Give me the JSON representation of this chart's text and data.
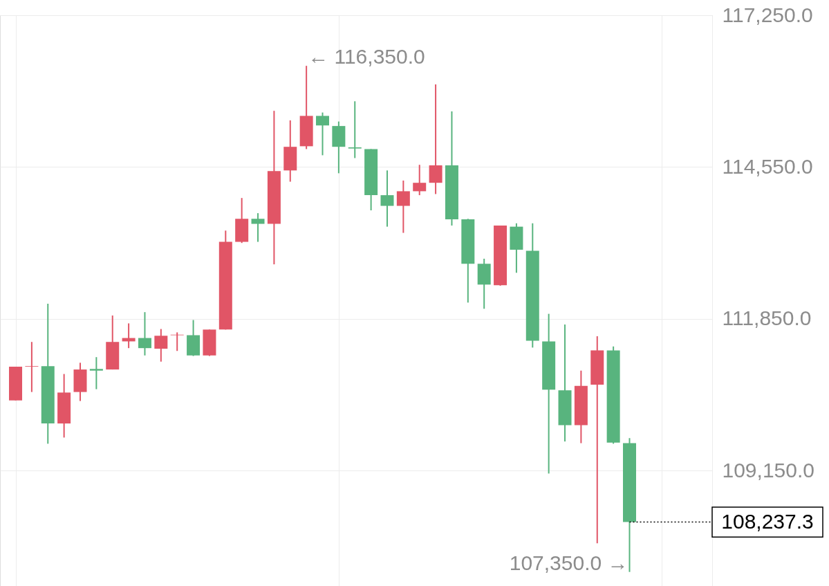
{
  "chart_data": {
    "type": "candlestick",
    "categories": [
      null,
      null,
      null,
      null,
      null,
      null,
      null,
      null,
      null,
      null,
      null,
      null,
      null,
      null,
      null,
      null,
      null,
      null,
      null,
      null,
      null,
      null,
      null,
      null,
      null,
      null,
      null,
      null,
      null,
      null,
      null,
      null,
      null,
      null,
      null,
      null,
      null,
      null,
      null
    ],
    "ohlc": [
      [
        110400,
        111000,
        110400,
        111000
      ],
      [
        111000,
        111440,
        110550,
        111010
      ],
      [
        111010,
        112120,
        109630,
        109990
      ],
      [
        109990,
        110870,
        109740,
        110540
      ],
      [
        110550,
        111070,
        110390,
        110950
      ],
      [
        110960,
        111170,
        110600,
        110930
      ],
      [
        110950,
        111910,
        110950,
        111440
      ],
      [
        111450,
        111770,
        111330,
        111510
      ],
      [
        111510,
        111970,
        111200,
        111330
      ],
      [
        111320,
        111670,
        111090,
        111550
      ],
      [
        111560,
        111610,
        111280,
        111570
      ],
      [
        111560,
        111830,
        111190,
        111200
      ],
      [
        111200,
        111660,
        111190,
        111660
      ],
      [
        111660,
        113420,
        111660,
        113220
      ],
      [
        113220,
        114000,
        113200,
        113630
      ],
      [
        113630,
        113730,
        113220,
        113540
      ],
      [
        113540,
        115550,
        112820,
        114480
      ],
      [
        114490,
        115380,
        114290,
        114910
      ],
      [
        114920,
        116350,
        114870,
        115460
      ],
      [
        115460,
        115520,
        114760,
        115290
      ],
      [
        115280,
        115360,
        114440,
        114910
      ],
      [
        114900,
        115720,
        114710,
        114880
      ],
      [
        114870,
        114870,
        113780,
        114050
      ],
      [
        114050,
        114490,
        113490,
        113860
      ],
      [
        113860,
        114310,
        113380,
        114120
      ],
      [
        114120,
        114590,
        114050,
        114270
      ],
      [
        114270,
        116020,
        114070,
        114580
      ],
      [
        114580,
        115540,
        113510,
        113620
      ],
      [
        113620,
        113630,
        112140,
        112830
      ],
      [
        112830,
        112920,
        112030,
        112460
      ],
      [
        112450,
        113510,
        112440,
        113510
      ],
      [
        113490,
        113550,
        112670,
        113080
      ],
      [
        113060,
        113550,
        111340,
        111460
      ],
      [
        111450,
        111940,
        109100,
        110590
      ],
      [
        110580,
        111750,
        109670,
        109960
      ],
      [
        109960,
        110930,
        109640,
        110660
      ],
      [
        110680,
        111540,
        107860,
        111290
      ],
      [
        111290,
        111360,
        109630,
        109650
      ],
      [
        109640,
        109730,
        107350,
        108237.3
      ]
    ],
    "colors": [
      "#e15566",
      "#e15566",
      "#58b47e",
      "#e15566",
      "#e15566",
      "#58b47e",
      "#e15566",
      "#e15566",
      "#58b47e",
      "#e15566",
      "#e15566",
      "#58b47e",
      "#e15566",
      "#e15566",
      "#e15566",
      "#58b47e",
      "#e15566",
      "#e15566",
      "#e15566",
      "#58b47e",
      "#58b47e",
      "#58b47e",
      "#58b47e",
      "#58b47e",
      "#e15566",
      "#e15566",
      "#e15566",
      "#58b47e",
      "#58b47e",
      "#58b47e",
      "#e15566",
      "#58b47e",
      "#58b47e",
      "#58b47e",
      "#58b47e",
      "#e15566",
      "#e15566",
      "#58b47e",
      "#58b47e"
    ],
    "ylim": [
      107100,
      117250
    ],
    "yticks": [
      {
        "value": 109150,
        "label": "109,150.0"
      },
      {
        "value": 111850,
        "label": "111,850.0"
      },
      {
        "value": 114550,
        "label": "114,550.0"
      },
      {
        "value": 117250,
        "label": "117,250.0"
      }
    ],
    "grid": true,
    "tick_labels": "y",
    "annotations": [
      "← 116,350.0",
      "107,350.0 →"
    ],
    "ref_lines": [
      {
        "axis": "y",
        "value": 108237.3,
        "label": "108,237.3",
        "color": "#000000",
        "line_style": "dotted"
      }
    ]
  }
}
